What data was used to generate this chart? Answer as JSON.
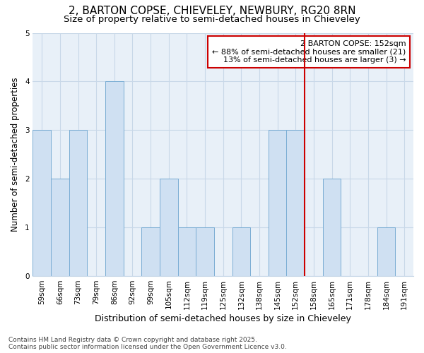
{
  "title_line1": "2, BARTON COPSE, CHIEVELEY, NEWBURY, RG20 8RN",
  "title_line2": "Size of property relative to semi-detached houses in Chieveley",
  "xlabel": "Distribution of semi-detached houses by size in Chieveley",
  "ylabel": "Number of semi-detached properties",
  "categories": [
    "59sqm",
    "66sqm",
    "73sqm",
    "79sqm",
    "86sqm",
    "92sqm",
    "99sqm",
    "105sqm",
    "112sqm",
    "119sqm",
    "125sqm",
    "132sqm",
    "138sqm",
    "145sqm",
    "152sqm",
    "158sqm",
    "165sqm",
    "171sqm",
    "178sqm",
    "184sqm",
    "191sqm"
  ],
  "values": [
    3,
    2,
    3,
    0,
    4,
    0,
    1,
    2,
    1,
    1,
    0,
    1,
    0,
    3,
    3,
    0,
    2,
    0,
    0,
    1,
    0
  ],
  "bar_color": "#cfe0f2",
  "bar_edge_color": "#7aadd4",
  "subject_line_index": 14,
  "subject_line_color": "#cc0000",
  "annotation_text": "2 BARTON COPSE: 152sqm\n← 88% of semi-detached houses are smaller (21)\n13% of semi-detached houses are larger (3) →",
  "annotation_box_edgecolor": "#cc0000",
  "ylim": [
    0,
    5
  ],
  "yticks": [
    0,
    1,
    2,
    3,
    4,
    5
  ],
  "grid_color": "#c8d8e8",
  "background_color": "#e8f0f8",
  "footer_text": "Contains HM Land Registry data © Crown copyright and database right 2025.\nContains public sector information licensed under the Open Government Licence v3.0.",
  "title_fontsize": 11,
  "subtitle_fontsize": 9.5,
  "xlabel_fontsize": 9,
  "ylabel_fontsize": 8.5,
  "tick_fontsize": 7.5,
  "annotation_fontsize": 8,
  "footer_fontsize": 6.5
}
